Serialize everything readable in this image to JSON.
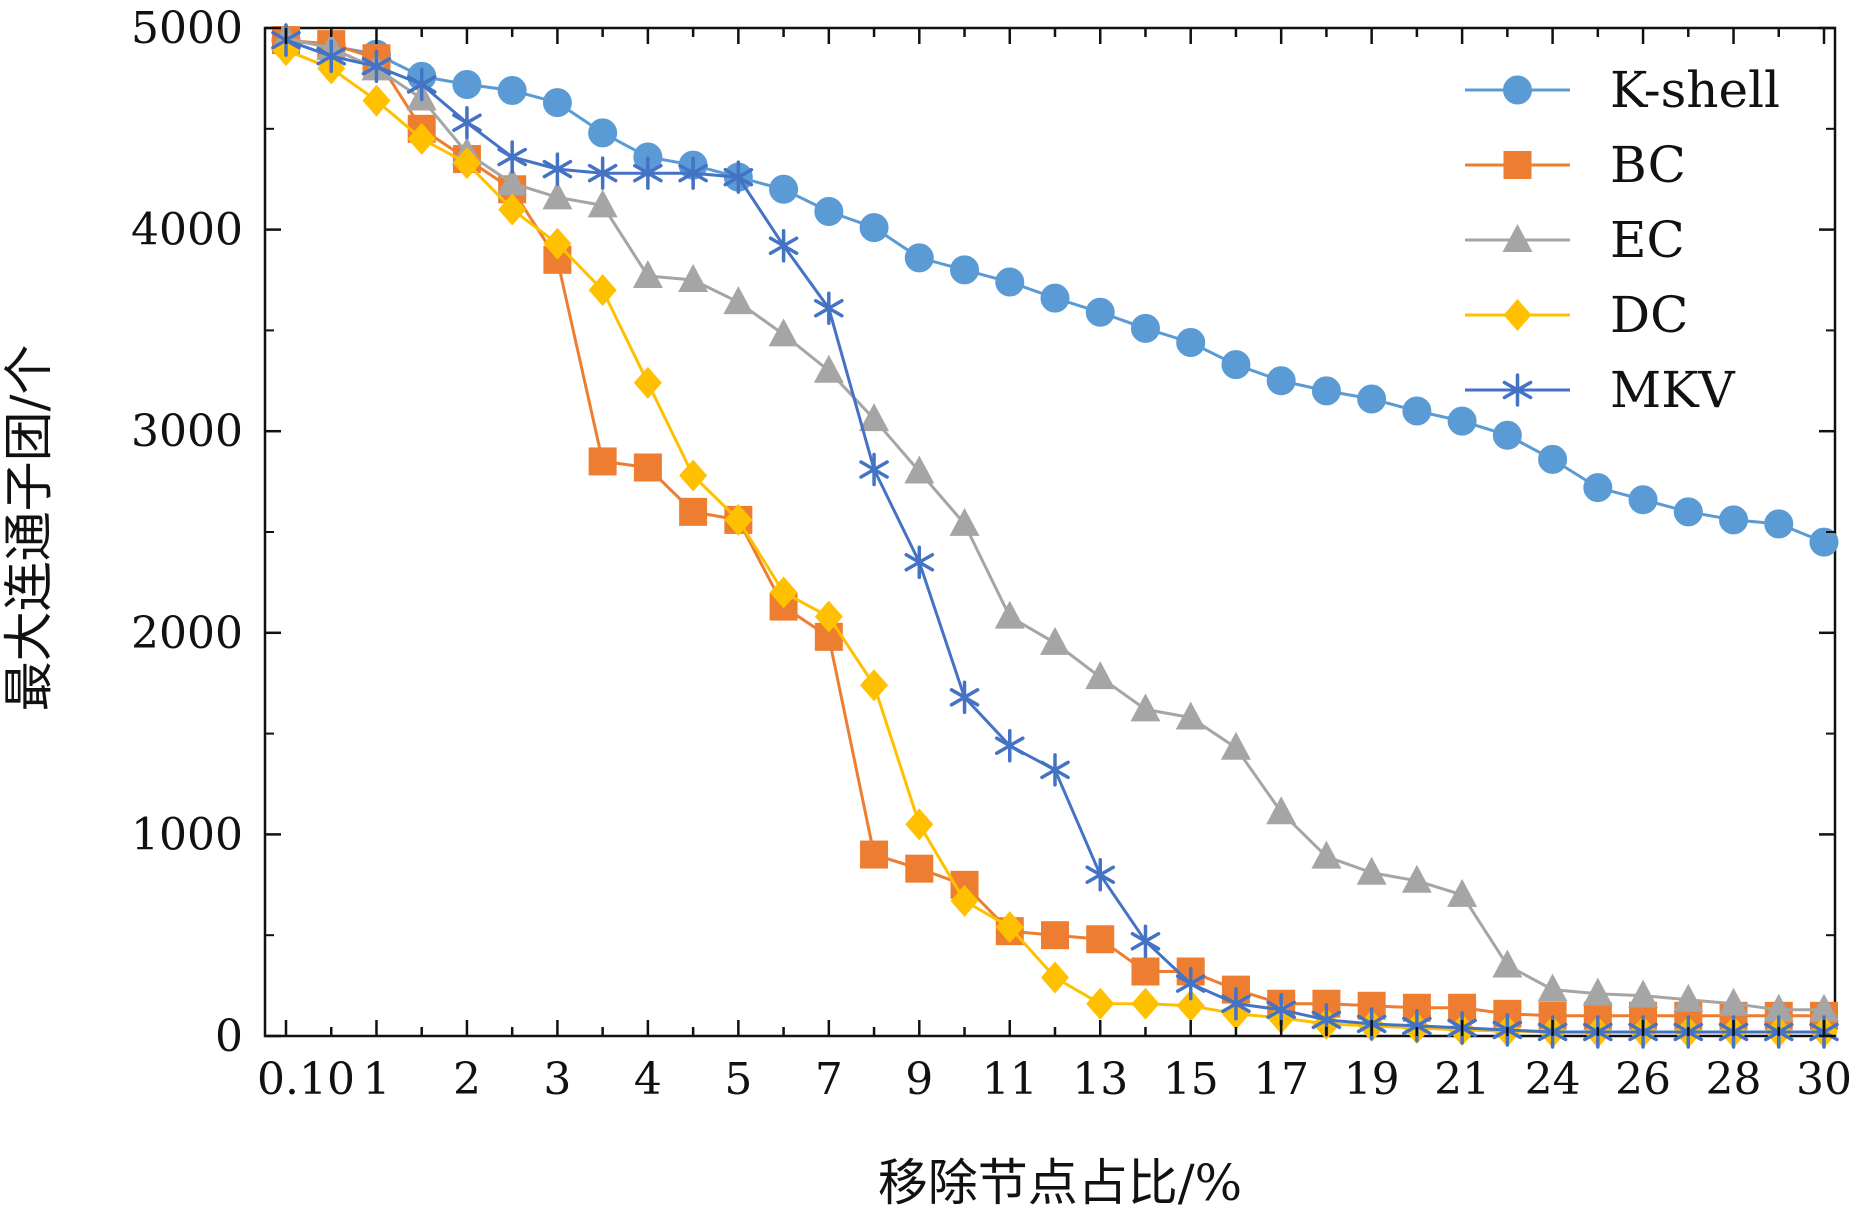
{
  "chart_data": {
    "type": "line",
    "xlabel": "移除节点占比/%",
    "ylabel": "最大连通子团/个",
    "ylim": [
      0,
      5000
    ],
    "yticks": [
      0,
      1000,
      2000,
      3000,
      4000,
      5000
    ],
    "categories": [
      "0.10",
      "0.5",
      "1",
      "1.5",
      "2",
      "2.5",
      "3",
      "3.5",
      "4",
      "4.5",
      "5",
      "6",
      "7",
      "8",
      "9",
      "10",
      "11",
      "12",
      "13",
      "14",
      "15",
      "16",
      "17",
      "18",
      "19",
      "20",
      "21",
      "22",
      "24",
      "25",
      "26",
      "27",
      "28",
      "29",
      "30"
    ],
    "tick_labels": [
      "0.10",
      "",
      "1",
      "",
      "2",
      "",
      "3",
      "",
      "4",
      "",
      "5",
      "",
      "7",
      "",
      "9",
      "",
      "11",
      "",
      "13",
      "",
      "15",
      "",
      "17",
      "",
      "19",
      "",
      "21",
      "",
      "24",
      "",
      "26",
      "",
      "28",
      "",
      "30"
    ],
    "legend_position": "top-right",
    "series": [
      {
        "name": "K-shell",
        "color": "#5b9bd5",
        "marker": "circle",
        "values": [
          4940,
          4910,
          4870,
          4760,
          4720,
          4690,
          4630,
          4480,
          4360,
          4320,
          4260,
          4200,
          4090,
          4010,
          3860,
          3800,
          3740,
          3660,
          3590,
          3510,
          3440,
          3330,
          3250,
          3200,
          3160,
          3100,
          3050,
          2980,
          2860,
          2720,
          2660,
          2600,
          2560,
          2540,
          2450
        ]
      },
      {
        "name": "BC",
        "color": "#ed7d31",
        "marker": "square",
        "values": [
          4940,
          4920,
          4850,
          4500,
          4350,
          4200,
          3850,
          2850,
          2820,
          2600,
          2560,
          2130,
          1980,
          900,
          830,
          750,
          520,
          500,
          480,
          320,
          320,
          230,
          160,
          160,
          150,
          140,
          140,
          110,
          100,
          100,
          100,
          100,
          100,
          100,
          100
        ]
      },
      {
        "name": "EC",
        "color": "#a5a5a5",
        "marker": "triangle",
        "values": [
          4950,
          4900,
          4800,
          4650,
          4380,
          4230,
          4160,
          4120,
          3770,
          3750,
          3640,
          3480,
          3300,
          3060,
          2800,
          2540,
          2080,
          1950,
          1780,
          1620,
          1580,
          1430,
          1110,
          890,
          810,
          770,
          700,
          350,
          230,
          210,
          200,
          180,
          160,
          130,
          130
        ]
      },
      {
        "name": "DC",
        "color": "#ffc000",
        "marker": "diamond",
        "values": [
          4890,
          4800,
          4640,
          4450,
          4330,
          4100,
          3930,
          3700,
          3240,
          2780,
          2560,
          2200,
          2080,
          1740,
          1050,
          670,
          540,
          290,
          160,
          160,
          150,
          110,
          90,
          60,
          50,
          40,
          30,
          25,
          20,
          20,
          20,
          20,
          20,
          20,
          20
        ]
      },
      {
        "name": "MKV",
        "color": "#4472c4",
        "marker": "star",
        "values": [
          4940,
          4860,
          4810,
          4720,
          4530,
          4360,
          4300,
          4280,
          4280,
          4280,
          4260,
          3920,
          3610,
          2810,
          2350,
          1680,
          1440,
          1320,
          800,
          470,
          260,
          160,
          130,
          80,
          60,
          50,
          40,
          30,
          20,
          20,
          20,
          20,
          20,
          20,
          20
        ]
      }
    ]
  }
}
